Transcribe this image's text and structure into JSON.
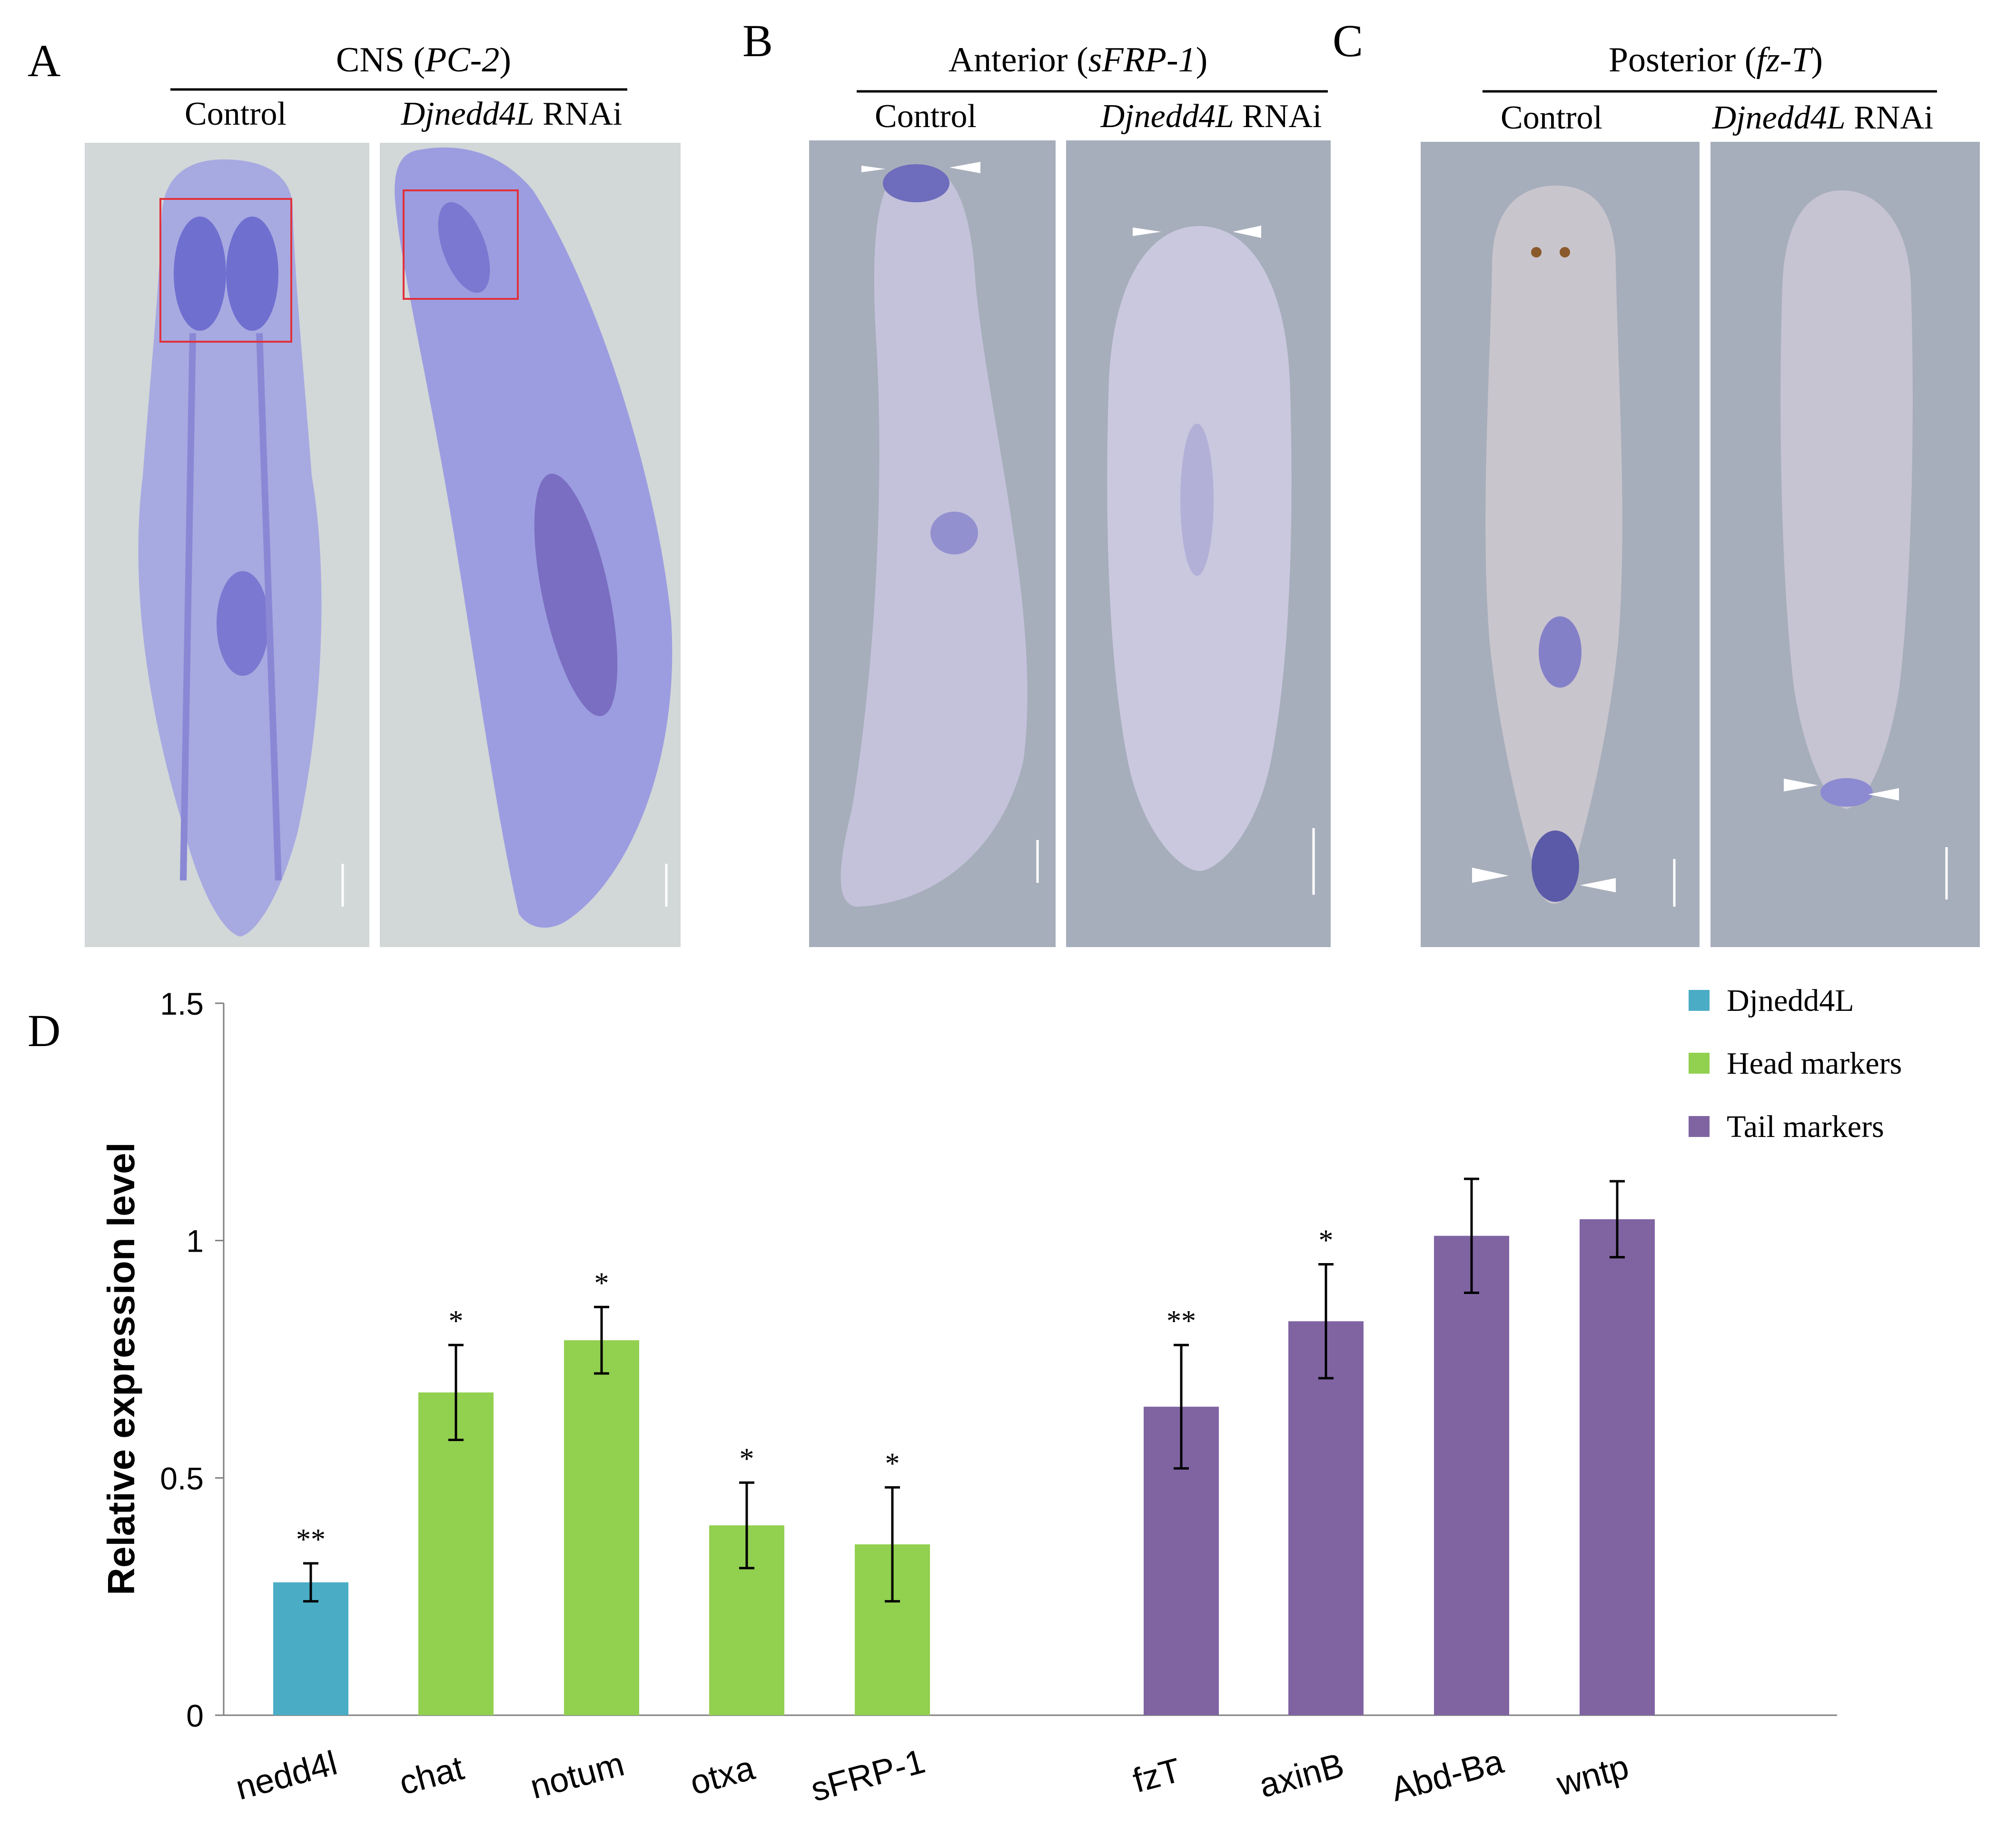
{
  "panels": {
    "A": {
      "letter": "A",
      "title_prefix": "CNS (",
      "title_gene": "PC-2",
      "title_suffix": ")",
      "control_label": "Control",
      "rnai_gene": "Djnedd4L",
      "rnai_suffix": " RNAi",
      "background_color": "#d2d7d8"
    },
    "B": {
      "letter": "B",
      "title_prefix": "Anterior (",
      "title_gene": "sFRP-1",
      "title_suffix": ")",
      "control_label": "Control",
      "rnai_gene": "Djnedd4L",
      "rnai_suffix": " RNAi",
      "background_color": "#a7aebb"
    },
    "C": {
      "letter": "C",
      "title_prefix": "Posterior (",
      "title_gene": "fz-T",
      "title_suffix": ")",
      "control_label": "Control",
      "rnai_gene": "Djnedd4L",
      "rnai_suffix": " RNAi",
      "background_color": "#a7aebb"
    },
    "D": {
      "letter": "D"
    }
  },
  "chart_data": {
    "type": "bar",
    "ylabel": "Relative expression level",
    "ylim": [
      0,
      1.5
    ],
    "yticks": [
      "0",
      "0.5",
      "1",
      "1.5"
    ],
    "ytick_values": [
      0,
      0.5,
      1,
      1.5
    ],
    "grid": false,
    "legend_position": "top-right",
    "legend": [
      {
        "label": "Djnedd4L",
        "color": "#4bacc6"
      },
      {
        "label": "Head markers",
        "color": "#92d050"
      },
      {
        "label": "Tail markers",
        "color": "#8064a2"
      }
    ],
    "categories": [
      "nedd4l",
      "chat",
      "notum",
      "otxa",
      "sFRP-1",
      "fzT",
      "axinB",
      "Abd-Ba",
      "wntp"
    ],
    "group": [
      "Djnedd4L",
      "Head markers",
      "Head markers",
      "Head markers",
      "Head markers",
      "Tail markers",
      "Tail markers",
      "Tail markers",
      "Tail markers"
    ],
    "values": [
      0.28,
      0.68,
      0.79,
      0.4,
      0.36,
      0.65,
      0.83,
      1.01,
      1.045
    ],
    "errors": [
      0.04,
      0.1,
      0.07,
      0.09,
      0.12,
      0.13,
      0.12,
      0.12,
      0.08
    ],
    "significance": [
      "**",
      "*",
      "*",
      "*",
      "*",
      "**",
      "*",
      "",
      ""
    ]
  }
}
